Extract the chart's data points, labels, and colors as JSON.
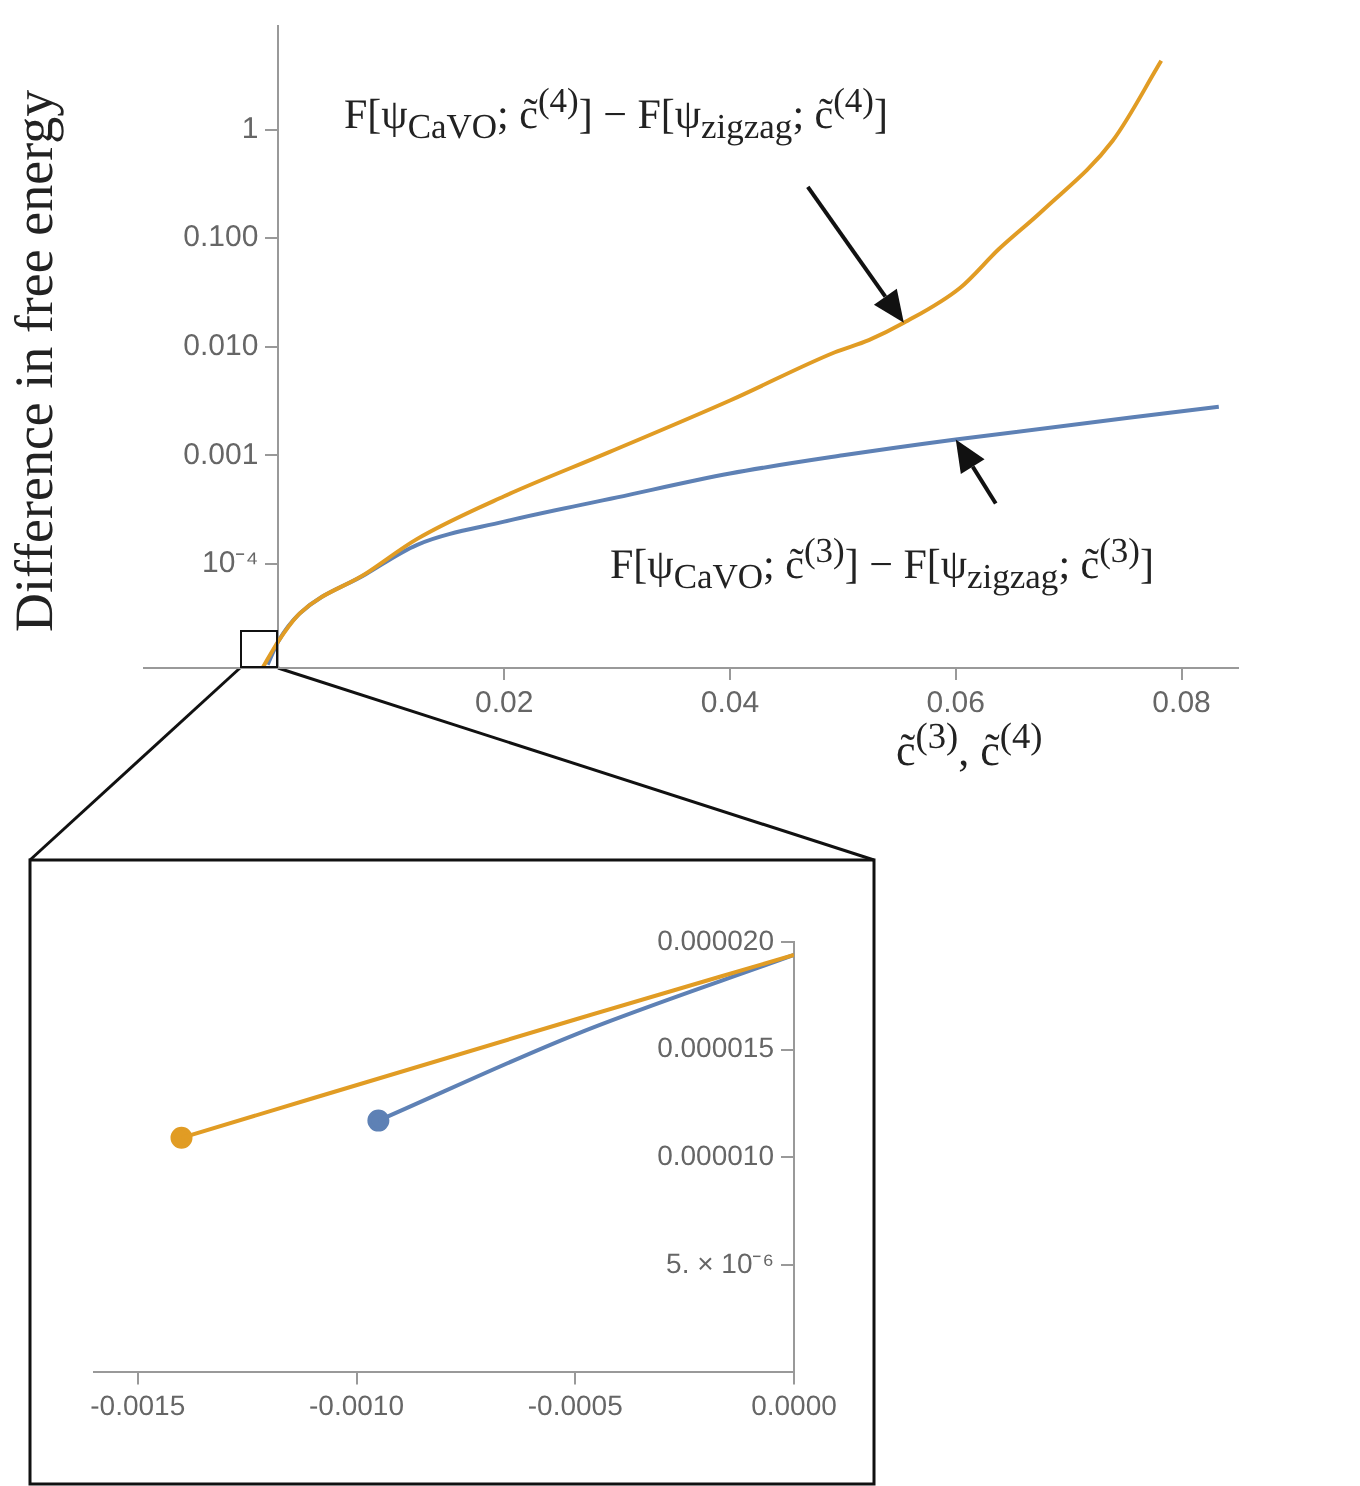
{
  "chart_data": [
    {
      "type": "line",
      "log": "y",
      "xlabel": "c̃$^{(3)}$, c̃$^{(4)}$",
      "ylabel": "Difference in free energy",
      "xlim": [
        -0.0119,
        0.085
      ],
      "ylim": [
        1.1e-05,
        9
      ],
      "xticks": [
        0.02,
        0.04,
        0.06,
        0.08
      ],
      "yticks": [
        {
          "value": 0.0001,
          "label": "10⁻⁴"
        },
        {
          "value": 0.001,
          "label": "0.001"
        },
        {
          "value": 0.01,
          "label": "0.010"
        },
        {
          "value": 0.1,
          "label": "0.100"
        },
        1
      ],
      "grid": false,
      "legend": false,
      "series": [
        {
          "name": "F[ψ$_{CaVO}$; c̃$^{(4)}$] − F[ψ$_{zigzag}$; c̃$^{(4)}$]",
          "color": "#e19c24",
          "x": [
            -0.0014,
            0,
            0.0019,
            0.0077,
            0.0123,
            0.02,
            0.0293,
            0.04,
            0.0493,
            0.0523,
            0.0554,
            0.0604,
            0.0638,
            0.0677,
            0.0739,
            0.0782
          ],
          "values": [
            1.1e-05,
            1.94e-05,
            3.5e-05,
            8.1e-05,
            0.00017,
            0.00042,
            0.00107,
            0.0032,
            0.0089,
            0.0115,
            0.0166,
            0.035,
            0.079,
            0.18,
            0.79,
            4.3
          ]
        },
        {
          "name": "F[ψ$_{CaVO}$; c̃$^{(3)}$] − F[ψ$_{zigzag}$; c̃$^{(3)}$]",
          "color": "#5e81b5",
          "x": [
            -0.00095,
            0,
            0.0019,
            0.0077,
            0.0123,
            0.02,
            0.03,
            0.04,
            0.05,
            0.06,
            0.0833
          ],
          "values": [
            1.18e-05,
            1.94e-05,
            3.5e-05,
            8e-05,
            0.00015,
            0.000245,
            0.00041,
            0.00068,
            0.001,
            0.0014,
            0.0028
          ]
        }
      ]
    },
    {
      "type": "line",
      "xlim": [
        -0.0016,
        0
      ],
      "ylim": [
        0,
        2e-05
      ],
      "xticks": [
        {
          "value": -0.0015,
          "label": "-0.0015"
        },
        {
          "value": -0.001,
          "label": "-0.0010"
        },
        {
          "value": -0.0005,
          "label": "-0.0005"
        },
        {
          "value": 0,
          "label": "0.0000"
        }
      ],
      "yticks": [
        {
          "value": 5e-06,
          "label": "5. × 10⁻⁶"
        },
        {
          "value": 1e-05,
          "label": "0.000010"
        },
        {
          "value": 1.5e-05,
          "label": "0.000015"
        },
        {
          "value": 2e-05,
          "label": "0.000020"
        }
      ],
      "grid": false,
      "legend": false,
      "series": [
        {
          "color": "#e19c24",
          "x": [
            -0.0014,
            -0.0005,
            0
          ],
          "values": [
            1.09e-05,
            1.64e-05,
            1.94e-05
          ]
        },
        {
          "color": "#5e81b5",
          "x": [
            -0.00095,
            -0.0005,
            0
          ],
          "values": [
            1.17e-05,
            1.57e-05,
            1.94e-05
          ]
        },
        {
          "type": "scatter",
          "color": "#e19c24",
          "x": [
            -0.0014
          ],
          "values": [
            1.09e-05
          ]
        },
        {
          "type": "scatter",
          "color": "#5e81b5",
          "x": [
            -0.00095
          ],
          "values": [
            1.17e-05
          ]
        }
      ]
    }
  ]
}
